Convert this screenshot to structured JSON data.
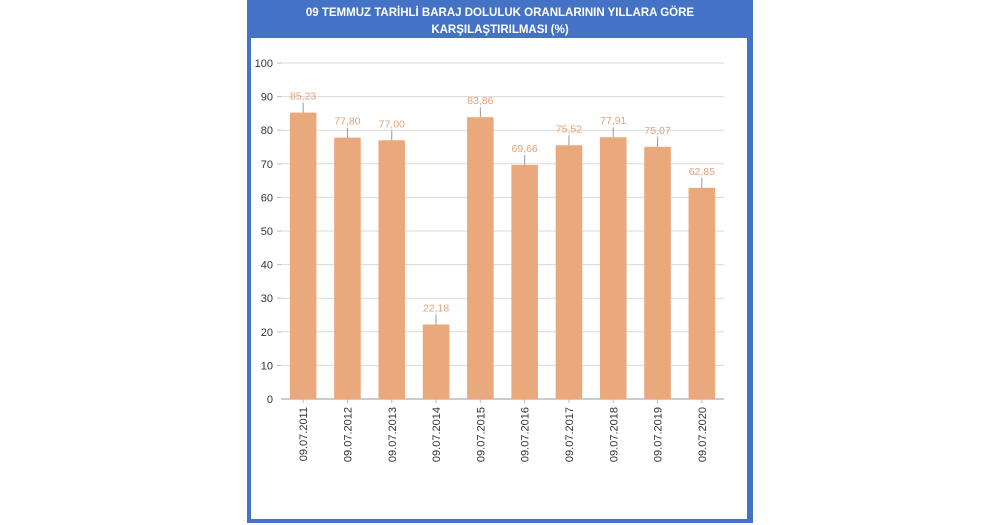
{
  "title_lines": [
    "09 TEMMUZ TARİHLİ BARAJ DOLULUK ORANLARININ YILLARA GÖRE",
    "KARŞILAŞTIRILMASI (%)"
  ],
  "colors": {
    "frame": "#4472c4",
    "bar": "#e9a97c",
    "data_label": "#e0a27a",
    "grid": "#d9d9d9",
    "axis_text": "#333333"
  },
  "chart_data": {
    "type": "bar",
    "title": "09 TEMMUZ TARİHLİ BARAJ DOLULUK ORANLARININ YILLARA GÖRE KARŞILAŞTIRILMASI (%)",
    "categories": [
      "09.07.2011",
      "09.07.2012",
      "09.07.2013",
      "09.07.2014",
      "09.07.2015",
      "09.07.2016",
      "09.07.2017",
      "09.07.2018",
      "09.07.2019",
      "09.07.2020"
    ],
    "values": [
      85.23,
      77.8,
      77.0,
      22.18,
      83.86,
      69.66,
      75.52,
      77.91,
      75.07,
      62.85
    ],
    "value_labels": [
      "85,23",
      "77,80",
      "77,00",
      "22,18",
      "83,86",
      "69,66",
      "75,52",
      "77,91",
      "75,07",
      "62,85"
    ],
    "ylim": [
      0,
      100
    ],
    "yticks": [
      0,
      10,
      20,
      30,
      40,
      50,
      60,
      70,
      80,
      90,
      100
    ],
    "grid": true,
    "legend": "none"
  }
}
